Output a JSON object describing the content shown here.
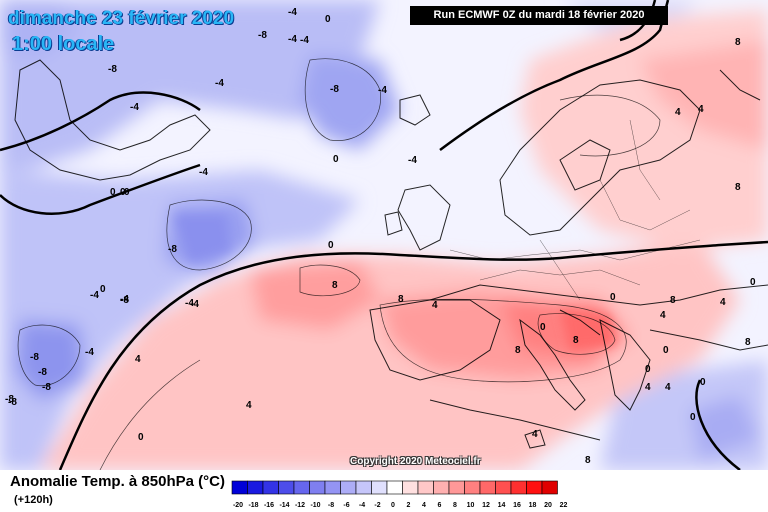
{
  "header": {
    "date": "dimanche 23 février 2020",
    "time": "1:00 locale",
    "run": "Run ECMWF 0Z du mardi 18 février 2020"
  },
  "copyright": "Copyright 2020 Meteociel.fr",
  "footer": {
    "title": "Anomalie Temp. à 850hPa (°C)",
    "lead": "(+120h)"
  },
  "scale": {
    "labels": [
      "-20",
      "-18",
      "-16",
      "-14",
      "-12",
      "-10",
      "-8",
      "-6",
      "-4",
      "-2",
      "0",
      "2",
      "4",
      "6",
      "8",
      "10",
      "12",
      "14",
      "16",
      "18",
      "20",
      "22"
    ],
    "colors": [
      "#0000d8",
      "#1a1ae0",
      "#3333e6",
      "#4d4dea",
      "#6666ee",
      "#7f7ff0",
      "#9494f4",
      "#adadf7",
      "#c6c6fa",
      "#e0e0fd",
      "#ffffff",
      "#ffe0e0",
      "#ffc8c8",
      "#ffb0b0",
      "#ff9898",
      "#ff8080",
      "#ff6868",
      "#ff5050",
      "#ff3030",
      "#ff1010",
      "#e00000"
    ]
  },
  "contour_labels": [
    "-8",
    "-4",
    "-8",
    "-4",
    "0",
    "-4",
    "-4",
    "0",
    "-4",
    "0",
    "-4",
    "-8",
    "-8",
    "-4",
    "0",
    "-4",
    "0",
    "-8",
    "-8",
    "-4",
    "-8",
    "-4",
    "-8",
    "-8",
    "-8",
    "-4",
    "-4",
    "-4",
    "0",
    "8",
    "0",
    "8",
    "8",
    "8",
    "4",
    "4",
    "0",
    "4",
    "8",
    "4",
    "0",
    "8",
    "8",
    "4",
    "4",
    "4",
    "0",
    "8",
    "0",
    "4",
    "0",
    "4",
    "4",
    "0",
    "8",
    "0",
    "0"
  ],
  "legend_name": "temperature-anomaly-scale"
}
